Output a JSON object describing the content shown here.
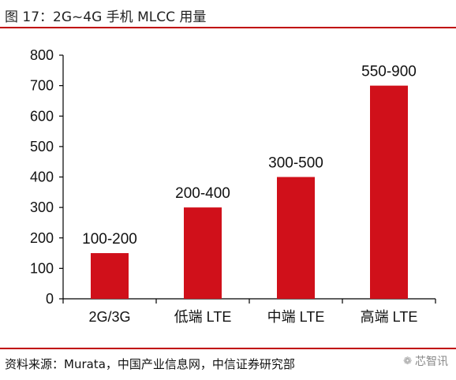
{
  "header": {
    "title": "图 17：2G~4G 手机 MLCC 用量"
  },
  "footer": {
    "source": "资料来源：Murata，中国产业信息网，中信证券研究部",
    "watermark": "芯智讯",
    "watermark_icon": "wechat-icon"
  },
  "colors": {
    "bar": "#d0101a",
    "accent_rule": "#c00000",
    "axis": "#000000"
  },
  "chart_data": {
    "type": "bar",
    "title": "",
    "xlabel": "",
    "ylabel": "",
    "categories": [
      "2G/3G",
      "低端 LTE",
      "中端 LTE",
      "高端 LTE"
    ],
    "values": [
      150,
      300,
      400,
      700
    ],
    "data_labels": [
      "100-200",
      "200-400",
      "300-500",
      "550-900"
    ],
    "ylim": [
      0,
      800
    ],
    "yticks": [
      0,
      100,
      200,
      300,
      400,
      500,
      600,
      700,
      800
    ],
    "grid": false,
    "legend": "none"
  }
}
